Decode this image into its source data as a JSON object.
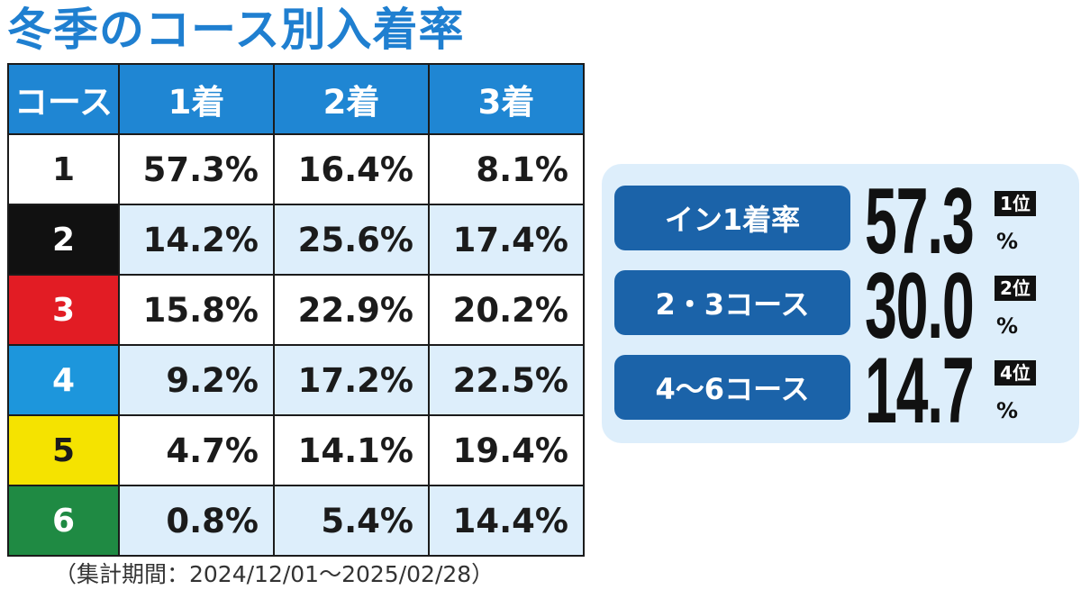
{
  "title": "冬季のコース別入着率",
  "period": "（集計期間：2024/12/01～2025/02/28）",
  "chart_data": {
    "type": "table",
    "columns": [
      "コース",
      "1着",
      "2着",
      "3着"
    ],
    "rows": [
      {
        "course": "1",
        "values": [
          "57.3%",
          "16.4%",
          "8.1%"
        ],
        "bg": "#ffffff",
        "fg": "#1b1b1b"
      },
      {
        "course": "2",
        "values": [
          "14.2%",
          "25.6%",
          "17.4%"
        ],
        "bg": "#111111",
        "fg": "#ffffff"
      },
      {
        "course": "3",
        "values": [
          "15.8%",
          "22.9%",
          "20.2%"
        ],
        "bg": "#e21c24",
        "fg": "#ffffff"
      },
      {
        "course": "4",
        "values": [
          "9.2%",
          "17.2%",
          "22.5%"
        ],
        "bg": "#1d96dc",
        "fg": "#ffffff"
      },
      {
        "course": "5",
        "values": [
          "4.7%",
          "14.1%",
          "19.4%"
        ],
        "bg": "#f5e300",
        "fg": "#1b1b1b"
      },
      {
        "course": "6",
        "values": [
          "0.8%",
          "5.4%",
          "14.4%"
        ],
        "bg": "#1f8a43",
        "fg": "#ffffff"
      }
    ]
  },
  "summary": [
    {
      "label": "イン1着率",
      "value": "57.3",
      "unit": "%",
      "rank": "1位"
    },
    {
      "label": "2・3コース",
      "value": "30.0",
      "unit": "%",
      "rank": "2位"
    },
    {
      "label": "4～6コース",
      "value": "14.7",
      "unit": "%",
      "rank": "4位"
    }
  ],
  "colors": {
    "title": "#1f7fd0",
    "header": "#1f86d3",
    "stripe": "#ddeefb",
    "label_box": "#1b63a9"
  }
}
